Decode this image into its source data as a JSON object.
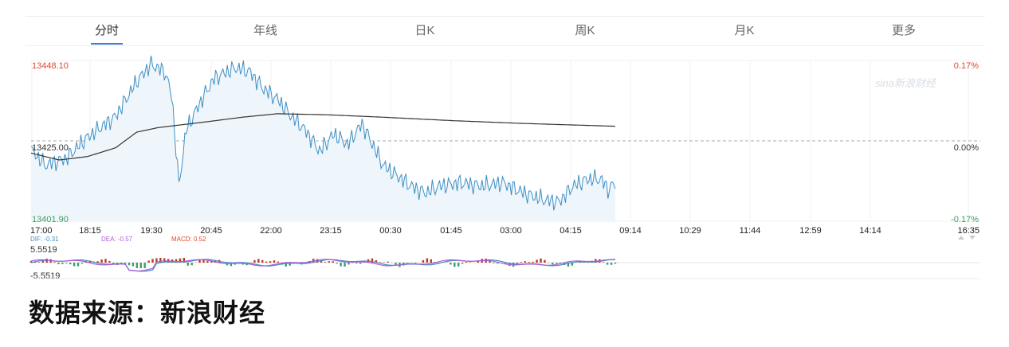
{
  "tabs": [
    {
      "label": "分时",
      "active": true
    },
    {
      "label": "年线",
      "active": false
    },
    {
      "label": "日K",
      "active": false
    },
    {
      "label": "周K",
      "active": false
    },
    {
      "label": "月K",
      "active": false
    },
    {
      "label": "更多",
      "active": false
    }
  ],
  "watermark": "sina新浪财经",
  "source": "数据来源：新浪财经",
  "colors": {
    "price": "#3d8fc4",
    "avg": "#333333",
    "up": "#e04a2f",
    "down": "#3aa35d",
    "dif": "#3d8fc4",
    "dea": "#b05cd9",
    "macd_up": "#b83a24",
    "macd_down": "#3d9e6e"
  },
  "chart_data": {
    "type": "line",
    "y_axis": {
      "top_label": "13448.10",
      "mid_label": "13425.00",
      "bottom_label": "13401.90",
      "top_pct": "0.17%",
      "mid_pct": "0.00%",
      "bottom_pct": "-0.17%",
      "ylim": [
        13401.9,
        13448.1
      ],
      "base": 13425.0
    },
    "time_ticks": [
      "17:00",
      "18:15",
      "19:30",
      "20:45",
      "22:00",
      "23:15",
      "00:30",
      "01:45",
      "03:00",
      "04:15",
      "09:14",
      "10:29",
      "11:44",
      "12:59",
      "14:14",
      "16:35"
    ],
    "price_keypoints": [
      [
        0,
        13422.5
      ],
      [
        2,
        13418
      ],
      [
        5,
        13420
      ],
      [
        8,
        13426
      ],
      [
        12,
        13432
      ],
      [
        15,
        13442
      ],
      [
        17,
        13447
      ],
      [
        19,
        13445
      ],
      [
        20,
        13438
      ],
      [
        21,
        13412
      ],
      [
        22,
        13428
      ],
      [
        24,
        13436
      ],
      [
        26,
        13443
      ],
      [
        29,
        13446
      ],
      [
        31,
        13445
      ],
      [
        33,
        13440
      ],
      [
        35,
        13437
      ],
      [
        37,
        13432
      ],
      [
        39,
        13428
      ],
      [
        41,
        13422
      ],
      [
        43,
        13427
      ],
      [
        45,
        13424
      ],
      [
        47,
        13430
      ],
      [
        48,
        13426
      ],
      [
        50,
        13418
      ],
      [
        52,
        13415
      ],
      [
        54,
        13412
      ],
      [
        56,
        13410
      ],
      [
        58,
        13412
      ],
      [
        61,
        13413
      ],
      [
        64,
        13412
      ],
      [
        67,
        13413
      ],
      [
        70,
        13410
      ],
      [
        73,
        13408
      ],
      [
        75,
        13407.5
      ],
      [
        77,
        13412
      ],
      [
        79,
        13414
      ],
      [
        81,
        13414
      ],
      [
        82,
        13411
      ],
      [
        83,
        13413
      ]
    ],
    "avg_keypoints": [
      [
        0,
        13421.5
      ],
      [
        4,
        13419.5
      ],
      [
        8,
        13420.5
      ],
      [
        12,
        13423
      ],
      [
        15,
        13427.5
      ],
      [
        18,
        13428.8
      ],
      [
        25,
        13430.5
      ],
      [
        30,
        13431.8
      ],
      [
        35,
        13432.8
      ],
      [
        42,
        13432.5
      ],
      [
        50,
        13431.8
      ],
      [
        60,
        13430.8
      ],
      [
        70,
        13430
      ],
      [
        83,
        13429.2
      ]
    ],
    "price_series_points": 84,
    "macd": {
      "dif_label": "DIF: -0.31",
      "dea_label": "DEA: -0.57",
      "macd_label": "MACD: 0.52",
      "top_label": "5.5519",
      "bottom_label": "-5.5519",
      "ylim": [
        -5.5519,
        5.5519
      ]
    }
  }
}
